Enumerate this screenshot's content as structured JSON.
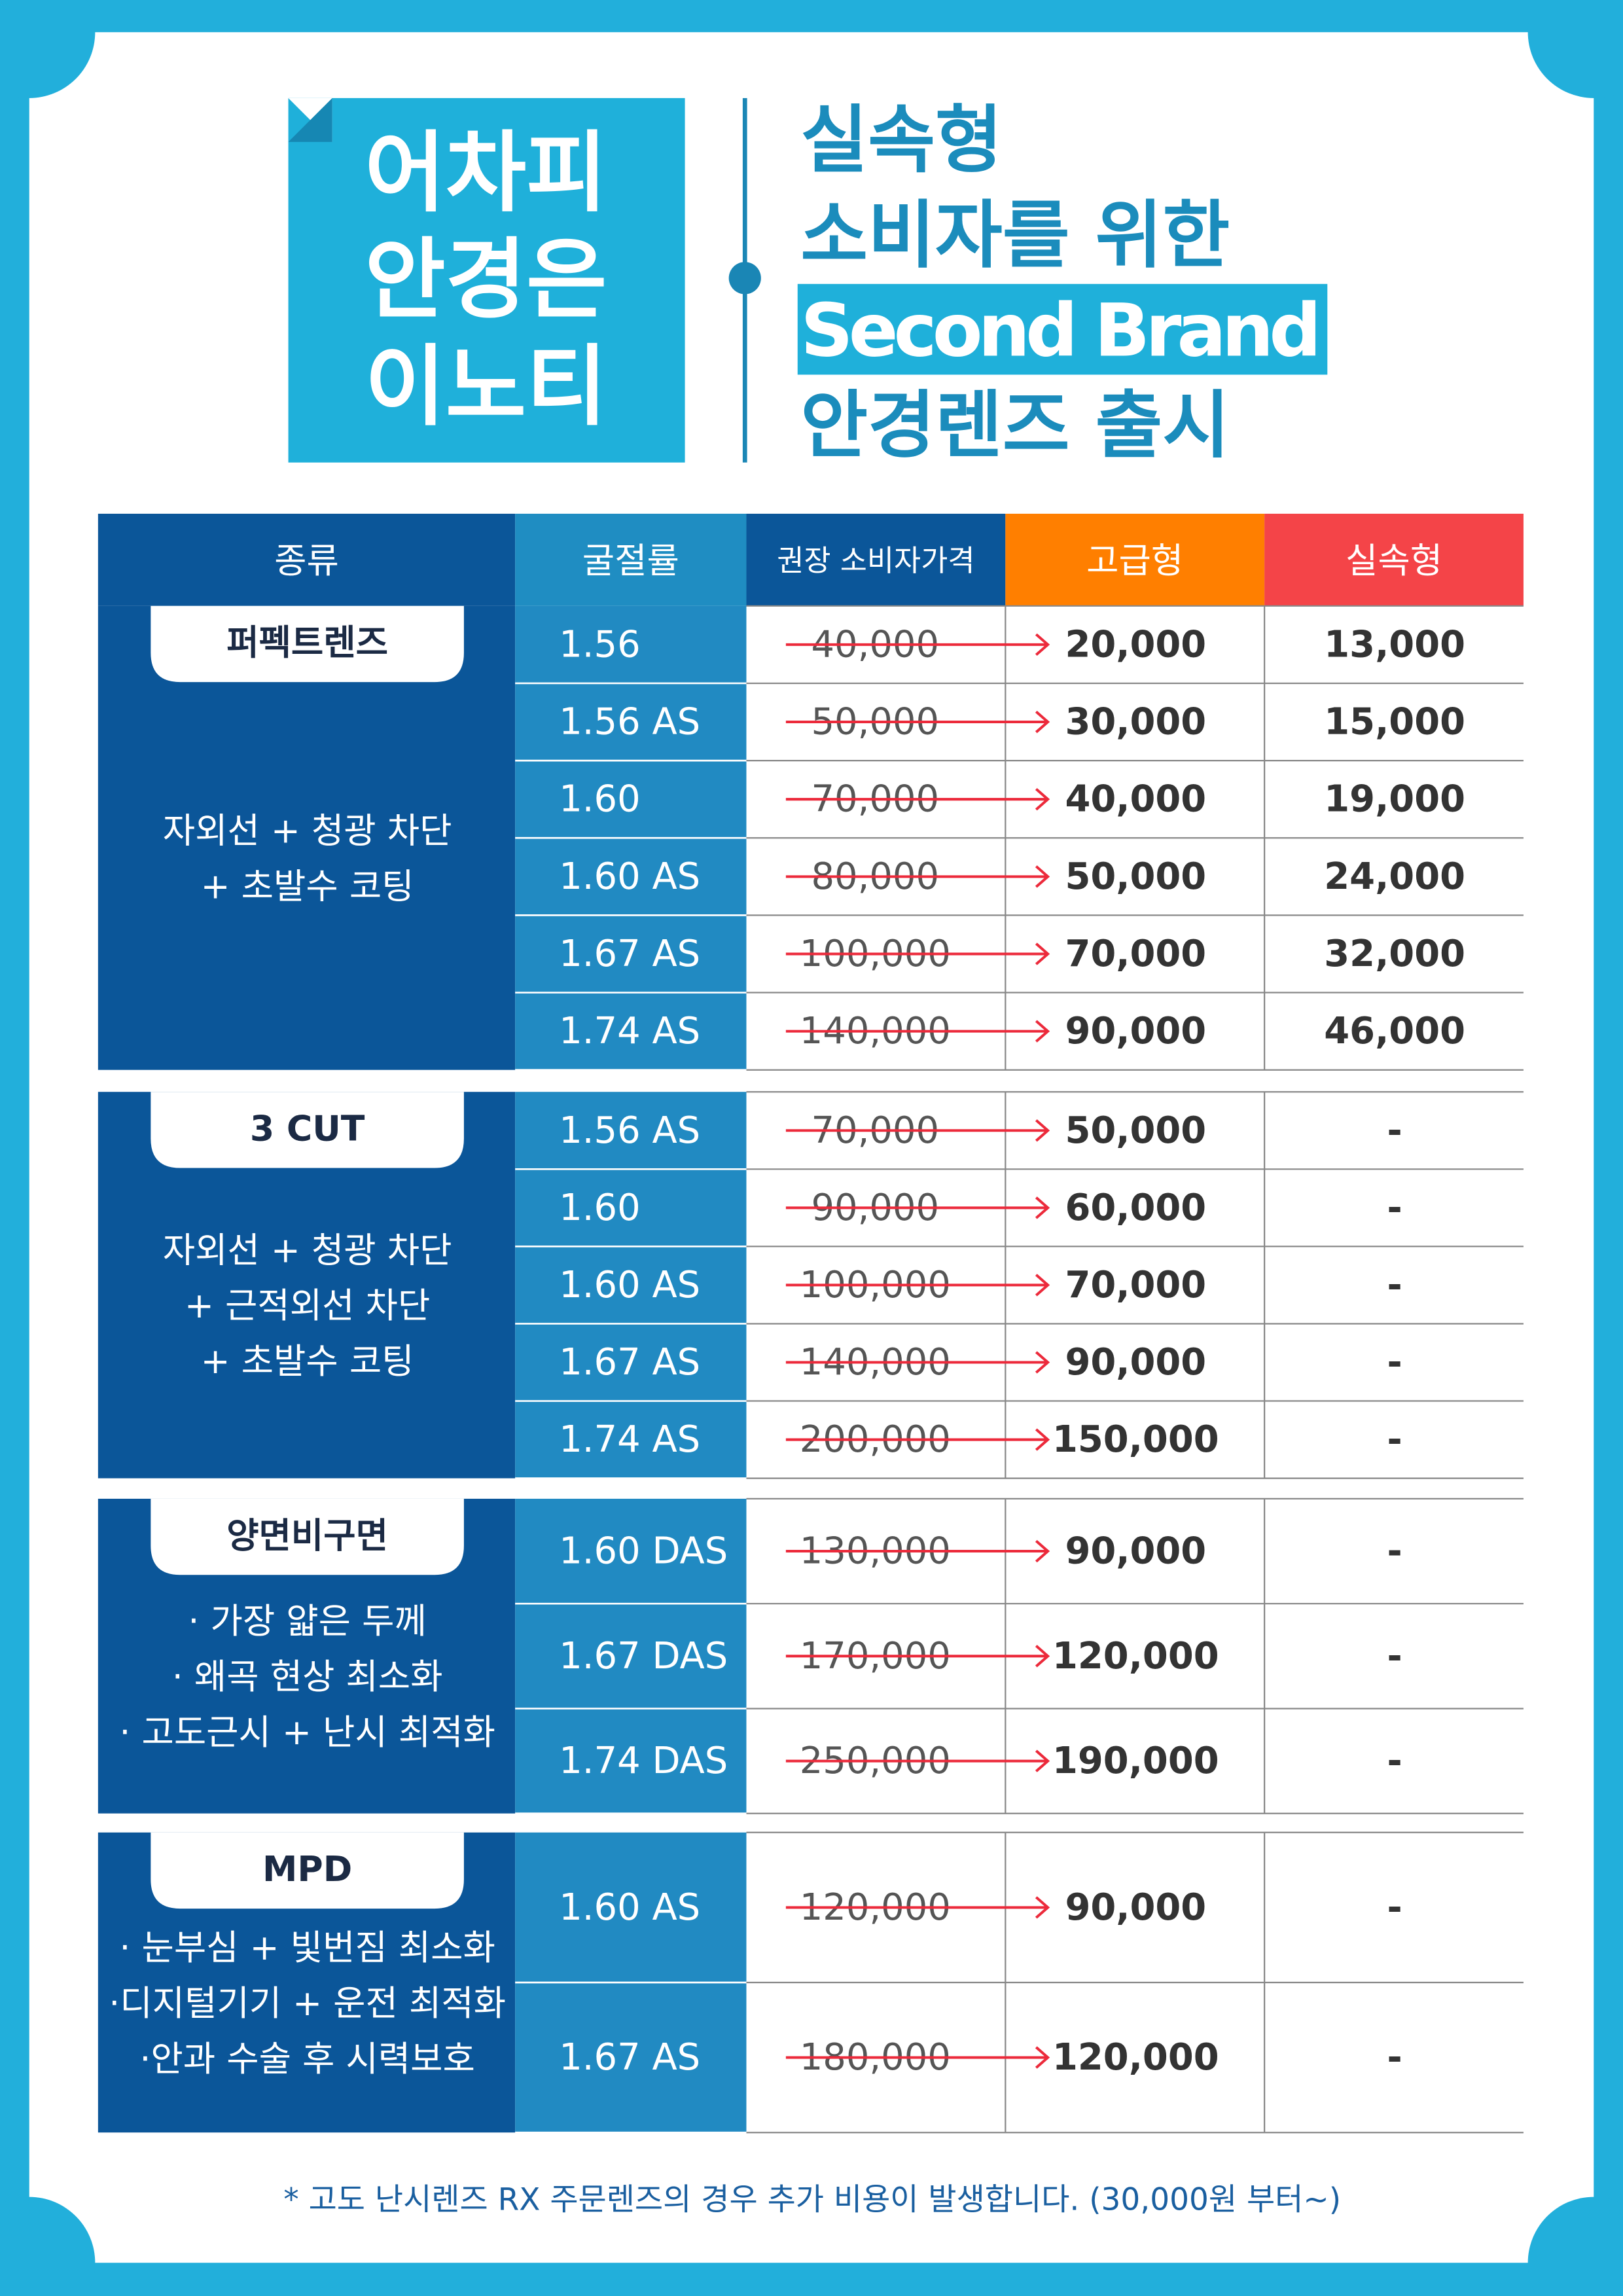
{
  "header": {
    "badge": [
      "어차피",
      "안경은",
      "이노티"
    ],
    "headline": [
      "실속형",
      "소비자를 위한",
      "Second Brand",
      "안경렌즈 출시"
    ]
  },
  "table": {
    "columns": [
      "종류",
      "굴절률",
      "권장 소비자가격",
      "고급형",
      "실속형"
    ],
    "groups": [
      {
        "name": "퍼펙트렌즈",
        "features": [
          "자외선 + 청광 차단",
          "+ 초발수 코팅"
        ],
        "rows": [
          [
            "1.56",
            "40,000",
            "20,000",
            "13,000"
          ],
          [
            "1.56 AS",
            "50,000",
            "30,000",
            "15,000"
          ],
          [
            "1.60",
            "70,000",
            "40,000",
            "19,000"
          ],
          [
            "1.60 AS",
            "80,000",
            "50,000",
            "24,000"
          ],
          [
            "1.67 AS",
            "100,000",
            "70,000",
            "32,000"
          ],
          [
            "1.74 AS",
            "140,000",
            "90,000",
            "46,000"
          ]
        ]
      },
      {
        "name": "3 CUT",
        "features": [
          "자외선 + 청광 차단",
          "+ 근적외선 차단",
          "+ 초발수 코팅"
        ],
        "rows": [
          [
            "1.56 AS",
            "70,000",
            "50,000",
            "-"
          ],
          [
            "1.60",
            "90,000",
            "60,000",
            "-"
          ],
          [
            "1.60 AS",
            "100,000",
            "70,000",
            "-"
          ],
          [
            "1.67 AS",
            "140,000",
            "90,000",
            "-"
          ],
          [
            "1.74 AS",
            "200,000",
            "150,000",
            "-"
          ]
        ]
      },
      {
        "name": "양면비구면",
        "features": [
          "· 가장 얇은 두께",
          "· 왜곡 현상 최소화",
          "·  고도근시 + 난시 최적화"
        ],
        "rows": [
          [
            "1.60 DAS",
            "130,000",
            "90,000",
            "-"
          ],
          [
            "1.67 DAS",
            "170,000",
            "120,000",
            "-"
          ],
          [
            "1.74 DAS",
            "250,000",
            "190,000",
            "-"
          ]
        ]
      },
      {
        "name": "MPD",
        "features": [
          "· 눈부심 + 빛번짐 최소화",
          "·디지털기기 + 운전 최적화",
          "·안과 수술 후 시력보호"
        ],
        "rows": [
          [
            "1.60 AS",
            "120,000",
            "90,000",
            "-"
          ],
          [
            "1.67 AS",
            "180,000",
            "120,000",
            "-"
          ]
        ]
      }
    ]
  },
  "footnote": "* 고도 난시렌즈 RX 주문렌즈의 경우 추가 비용이 발생합니다. (30,000원 부터~)"
}
